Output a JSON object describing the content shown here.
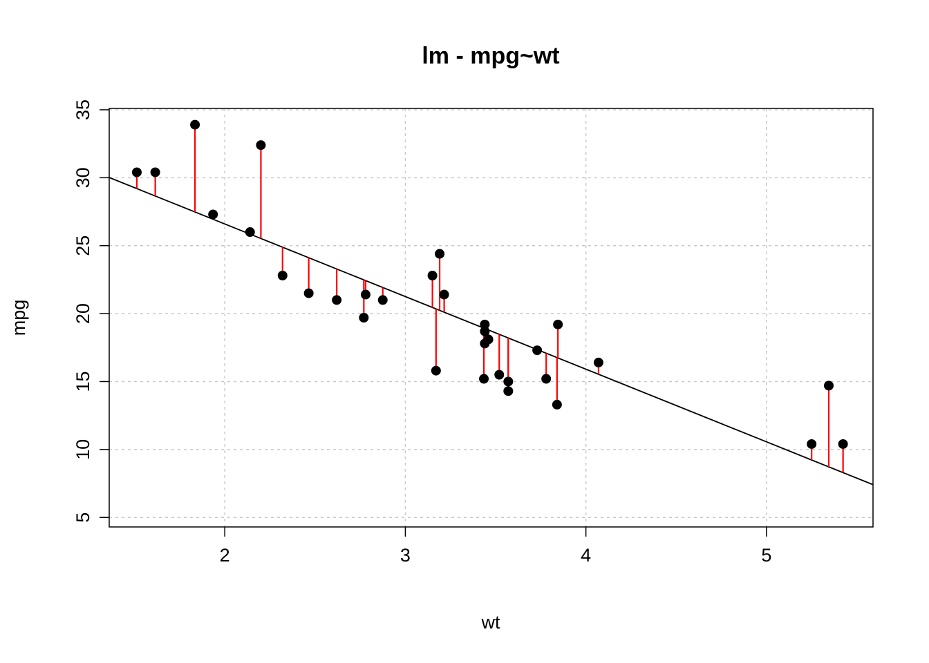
{
  "chart_data": {
    "type": "scatter",
    "title": "lm - mpg~wt",
    "xlabel": "wt",
    "ylabel": "mpg",
    "xlim": [
      1.36,
      5.59
    ],
    "ylim": [
      4.3,
      35.1
    ],
    "xticks": [
      2,
      3,
      4,
      5
    ],
    "yticks": [
      5,
      10,
      15,
      20,
      25,
      30,
      35
    ],
    "grid": true,
    "fit_line": {
      "intercept": 37.285,
      "slope": -5.344
    },
    "colors": {
      "points": "#000000",
      "fit": "#000000",
      "residuals": "#ff0000",
      "grid": "#c8c8c8"
    },
    "points": [
      {
        "x": 2.62,
        "y": 21.0
      },
      {
        "x": 2.875,
        "y": 21.0
      },
      {
        "x": 2.32,
        "y": 22.8
      },
      {
        "x": 3.215,
        "y": 21.4
      },
      {
        "x": 3.44,
        "y": 18.7
      },
      {
        "x": 3.46,
        "y": 18.1
      },
      {
        "x": 3.57,
        "y": 14.3
      },
      {
        "x": 3.19,
        "y": 24.4
      },
      {
        "x": 3.15,
        "y": 22.8
      },
      {
        "x": 3.44,
        "y": 19.2
      },
      {
        "x": 3.44,
        "y": 17.8
      },
      {
        "x": 4.07,
        "y": 16.4
      },
      {
        "x": 3.73,
        "y": 17.3
      },
      {
        "x": 3.78,
        "y": 15.2
      },
      {
        "x": 5.25,
        "y": 10.4
      },
      {
        "x": 5.424,
        "y": 10.4
      },
      {
        "x": 5.345,
        "y": 14.7
      },
      {
        "x": 2.2,
        "y": 32.4
      },
      {
        "x": 1.615,
        "y": 30.4
      },
      {
        "x": 1.835,
        "y": 33.9
      },
      {
        "x": 2.465,
        "y": 21.5
      },
      {
        "x": 3.52,
        "y": 15.5
      },
      {
        "x": 3.435,
        "y": 15.2
      },
      {
        "x": 3.84,
        "y": 13.3
      },
      {
        "x": 3.845,
        "y": 19.2
      },
      {
        "x": 1.935,
        "y": 27.3
      },
      {
        "x": 2.14,
        "y": 26.0
      },
      {
        "x": 1.513,
        "y": 30.4
      },
      {
        "x": 3.17,
        "y": 15.8
      },
      {
        "x": 2.77,
        "y": 19.7
      },
      {
        "x": 3.57,
        "y": 15.0
      },
      {
        "x": 2.78,
        "y": 21.4
      }
    ]
  }
}
